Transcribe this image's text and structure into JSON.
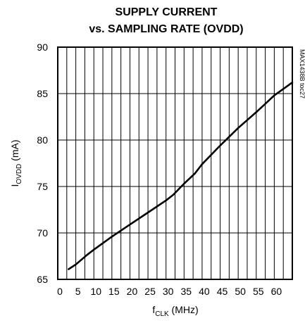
{
  "chart_data": {
    "type": "line",
    "title_line1": "SUPPLY CURRENT",
    "title_line2": "vs. SAMPLING RATE  (OVDD)",
    "ylabel_main": "I",
    "ylabel_sub": "OVDD",
    "ylabel_unit": " (mA)",
    "xlabel_main": "f",
    "xlabel_sub": "CLK",
    "xlabel_unit": " (MHz)",
    "side_note": "MAX1438B toc27",
    "xlim": [
      0,
      65
    ],
    "ylim": [
      65,
      90
    ],
    "x_ticks": [
      0,
      5,
      10,
      15,
      20,
      25,
      30,
      35,
      40,
      45,
      50,
      55,
      60
    ],
    "y_ticks": [
      65,
      70,
      75,
      80,
      85,
      90
    ],
    "x_grid_step": 2.5,
    "grid": true,
    "series": [
      {
        "x": [
          3,
          5,
          8,
          10,
          15,
          20,
          25,
          30,
          32,
          35,
          38,
          40,
          45,
          50,
          55,
          60,
          65
        ],
        "y": [
          66.1,
          66.6,
          67.6,
          68.2,
          69.6,
          70.9,
          72.2,
          73.5,
          74.1,
          75.3,
          76.4,
          77.4,
          79.4,
          81.3,
          83.0,
          84.8,
          86.2
        ]
      }
    ]
  }
}
